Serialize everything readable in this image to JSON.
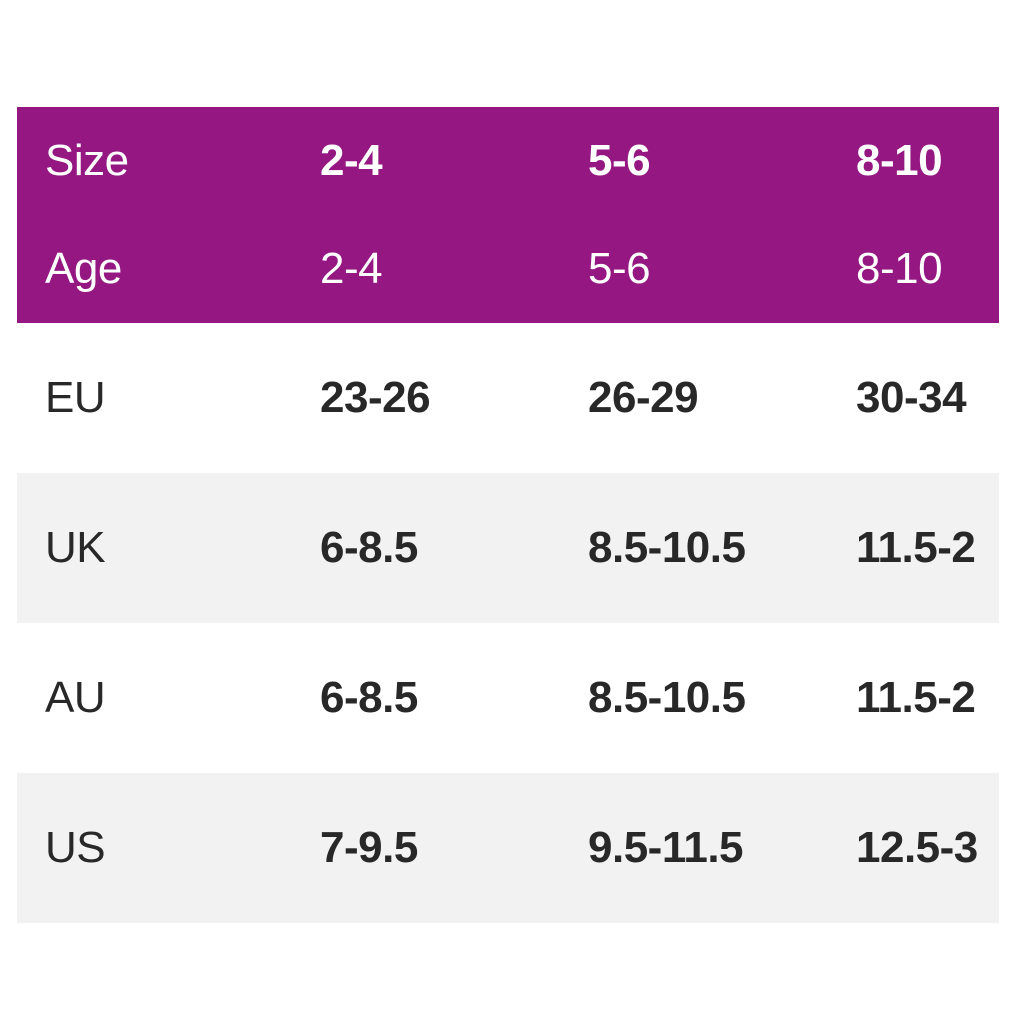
{
  "colors": {
    "header_bg": "#941782",
    "header_text": "#ffffff",
    "alt_row_bg": "#f2f2f2",
    "text": "#282828"
  },
  "chart_data": {
    "type": "table",
    "layout": {
      "header_rows_on_accent_background": [
        "Size",
        "Age"
      ],
      "body_row_striping": "white / light-gray alternating",
      "column_alignment": "left"
    },
    "header_rows": [
      {
        "label": "Size",
        "values": [
          "2-4",
          "5-6",
          "8-10"
        ]
      },
      {
        "label": "Age",
        "values": [
          "2-4",
          "5-6",
          "8-10"
        ]
      }
    ],
    "body_rows": [
      {
        "label": "EU",
        "values": [
          "23-26",
          "26-29",
          "30-34"
        ]
      },
      {
        "label": "UK",
        "values": [
          "6-8.5",
          "8.5-10.5",
          "11.5-2"
        ]
      },
      {
        "label": "AU",
        "values": [
          "6-8.5",
          "8.5-10.5",
          "11.5-2"
        ]
      },
      {
        "label": "US",
        "values": [
          "7-9.5",
          "9.5-11.5",
          "12.5-3"
        ]
      }
    ]
  }
}
